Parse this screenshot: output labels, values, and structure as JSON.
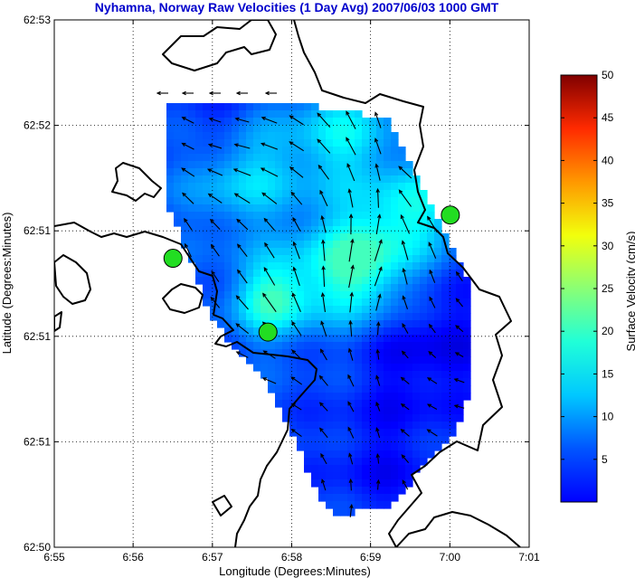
{
  "chart_data": {
    "type": "vector-map",
    "title": "Nyhamna, Norway Raw Velocities (1 Day Avg) 2007/06/03 1000 GMT",
    "xlabel": "Longitude (Degrees:Minutes)",
    "ylabel": "Latitude (Degrees:Minutes)",
    "xlim": [
      6.9167,
      7.0167
    ],
    "ylim": [
      62.8333,
      62.8833
    ],
    "x_ticks": [
      {
        "value": 6.9167,
        "label": "6:55"
      },
      {
        "value": 6.9333,
        "label": "6:56"
      },
      {
        "value": 6.95,
        "label": "6:57"
      },
      {
        "value": 6.9667,
        "label": "6:58"
      },
      {
        "value": 6.9833,
        "label": "6:59"
      },
      {
        "value": 7.0,
        "label": "7:00"
      },
      {
        "value": 7.0167,
        "label": "7:01"
      }
    ],
    "y_ticks": [
      {
        "value": 62.8333,
        "label": "62:50"
      },
      {
        "value": 62.8433,
        "label": "62:51"
      },
      {
        "value": 62.8533,
        "label": "62:51"
      },
      {
        "value": 62.8633,
        "label": "62:51"
      },
      {
        "value": 62.8733,
        "label": "62:52"
      },
      {
        "value": 62.8833,
        "label": "62:53"
      },
      {
        "value": 62.8933,
        "label": "62:53"
      }
    ],
    "grid": "dotted",
    "colorbar": {
      "label": "Surface Velocity (cm/s)",
      "min": 0,
      "max": 50,
      "ticks": [
        5,
        10,
        15,
        20,
        25,
        30,
        35,
        40,
        45,
        50
      ],
      "colormap": "jet"
    },
    "stations": [
      {
        "lon": 6.9417,
        "lat": 62.8607
      },
      {
        "lon": 6.9617,
        "lat": 62.8537
      },
      {
        "lon": 7.0001,
        "lat": 62.8648
      }
    ],
    "land_color": "#000000",
    "station_color": "#22dd22",
    "title_color": "#0000cc"
  }
}
